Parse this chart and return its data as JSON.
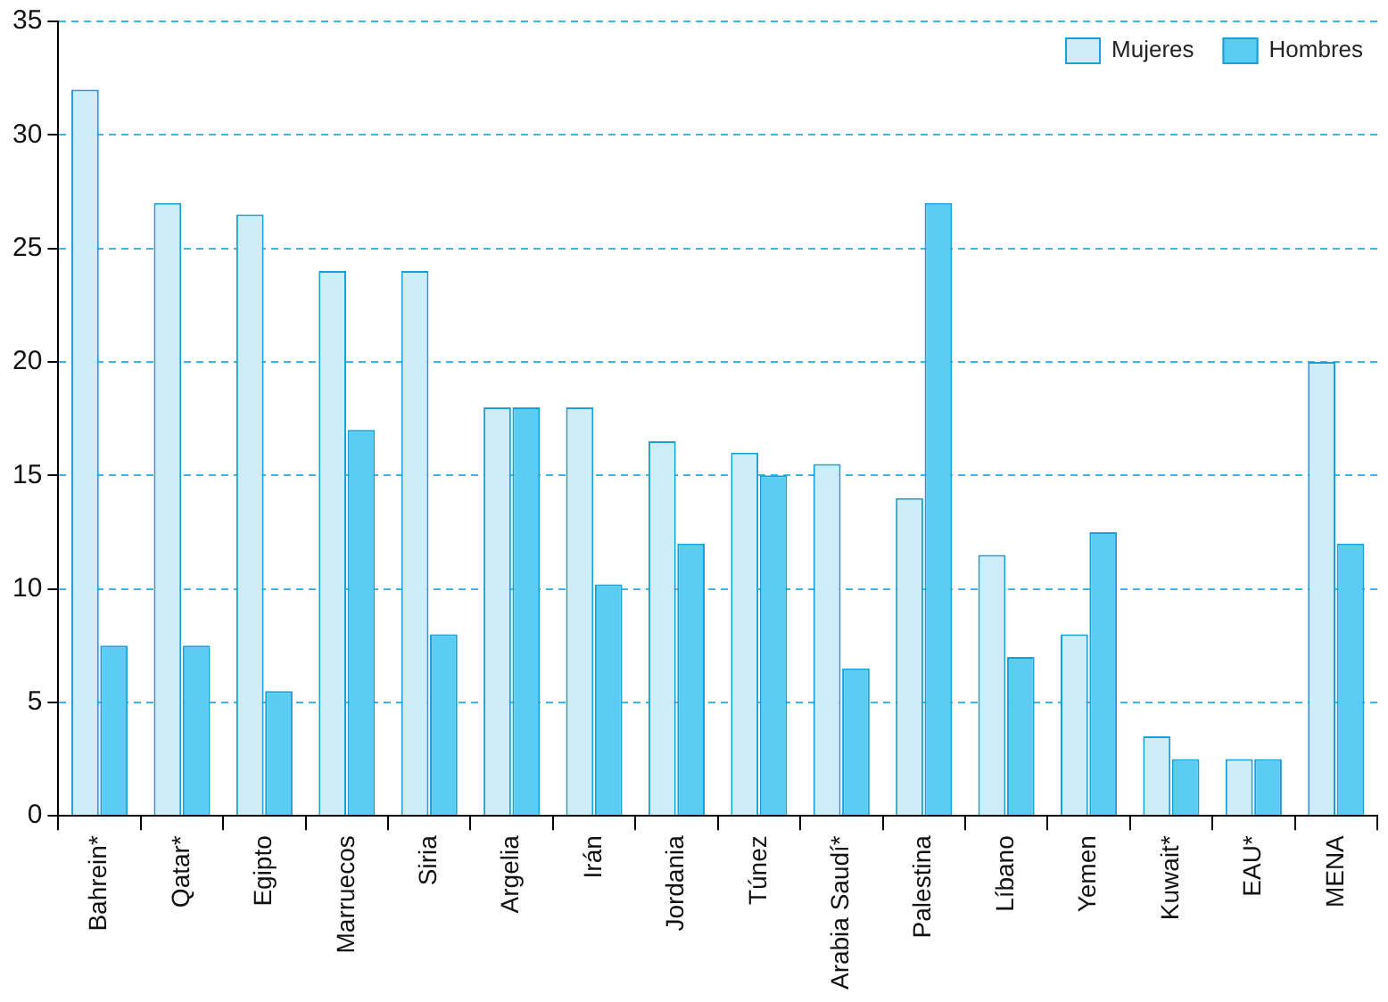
{
  "chart_data": {
    "type": "bar",
    "categories": [
      "Bahrein*",
      "Qatar*",
      "Egipto",
      "Marruecos",
      "Siria",
      "Argelia",
      "Irán",
      "Jordania",
      "Túnez",
      "Arabia Saudí*",
      "Palestina",
      "Líbano",
      "Yemen",
      "Kuwait*",
      "EAU*",
      "MENA"
    ],
    "series": [
      {
        "name": "Mujeres",
        "color": "#cdeef9",
        "values": [
          32,
          27,
          26.5,
          24,
          24,
          18,
          18,
          16.5,
          16,
          15.5,
          14,
          11.5,
          8,
          3.5,
          2.5,
          20
        ]
      },
      {
        "name": "Hombres",
        "color": "#5ccdf2",
        "values": [
          7.5,
          7.5,
          5.5,
          17,
          8,
          18,
          10.2,
          12,
          15,
          6.5,
          27,
          7,
          12.5,
          2.5,
          2.5,
          12
        ]
      }
    ],
    "ylim": [
      0,
      35
    ],
    "yticks": [
      0,
      5,
      10,
      15,
      20,
      25,
      30,
      35
    ],
    "grid": "y",
    "legend": "top right"
  }
}
